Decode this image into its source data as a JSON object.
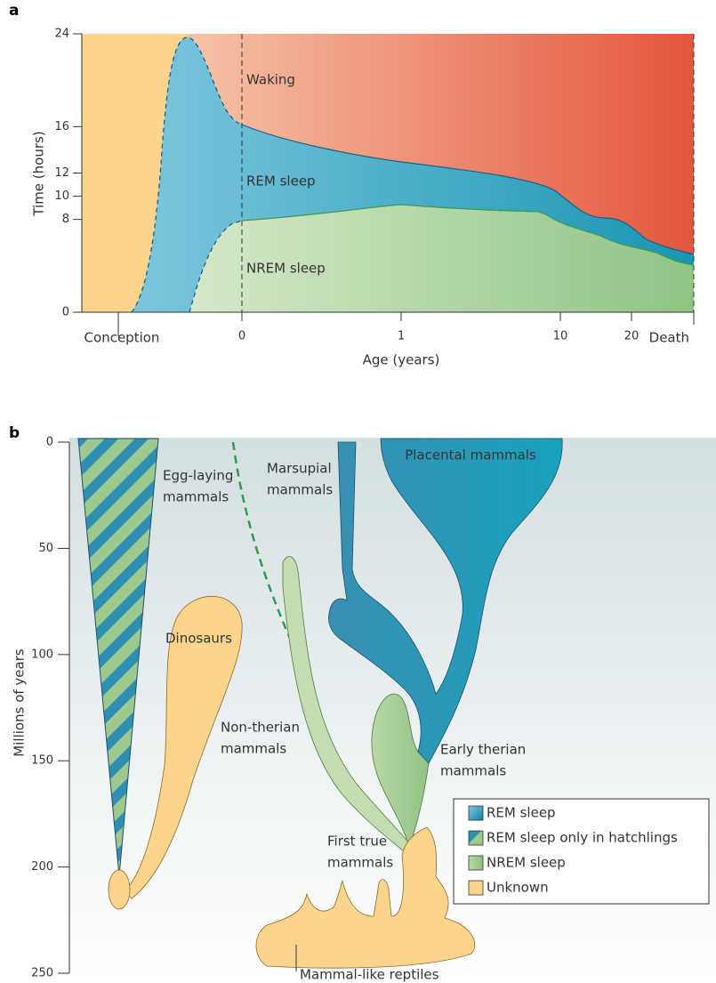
{
  "panel_a": {
    "label": "a",
    "y_axis_title": "Time (hours)",
    "ylim": [
      0,
      24
    ],
    "yticks": [
      0,
      8,
      10,
      12,
      16,
      24
    ],
    "x_axis_title": "Age (years)",
    "x_ticks": [
      "0",
      "1",
      "10",
      "20"
    ],
    "x_start": "Conception",
    "x_end": "Death",
    "regions": [
      "Waking",
      "REM sleep",
      "NREM sleep"
    ]
  },
  "panel_b": {
    "label": "b",
    "y_axis_title": "Millions of years",
    "ylim": [
      0,
      250
    ],
    "yticks": [
      0,
      50,
      100,
      150,
      200,
      250
    ],
    "groups": [
      {
        "lines": [
          "Egg-laying",
          "mammals"
        ]
      },
      {
        "lines": [
          "Marsupial",
          "mammals"
        ]
      },
      {
        "lines": [
          "Placental mammals"
        ]
      },
      {
        "lines": [
          "Dinosaurs"
        ]
      },
      {
        "lines": [
          "Non-therian",
          "mammals"
        ]
      },
      {
        "lines": [
          "Early therian",
          "mammals"
        ]
      },
      {
        "lines": [
          "First true",
          "mammals"
        ]
      },
      {
        "lines": [
          "Mammal-like reptiles"
        ]
      }
    ],
    "legend": [
      "REM sleep",
      "REM sleep only in hatchlings",
      "NREM sleep",
      "Unknown"
    ]
  }
}
